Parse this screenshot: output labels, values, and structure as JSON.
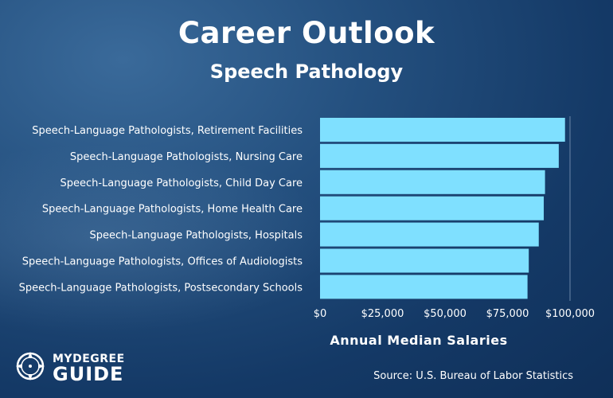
{
  "header": {
    "title": "Career Outlook",
    "subtitle": "Speech Pathology"
  },
  "chart_data": {
    "type": "bar",
    "orientation": "horizontal",
    "categories": [
      "Speech-Language Pathologists, Retirement Facilities",
      "Speech-Language Pathologists, Nursing Care",
      "Speech-Language Pathologists, Child Day Care",
      "Speech-Language Pathologists, Home Health Care",
      "Speech-Language Pathologists, Hospitals",
      "Speech-Language Pathologists, Offices of Audiologists",
      "Speech-Language Pathologists, Postsecondary Schools"
    ],
    "values": [
      98000,
      95500,
      90000,
      89500,
      87500,
      83500,
      83000
    ],
    "xlabel": "Annual Median Salaries",
    "ylabel": "",
    "xlim": [
      0,
      100000
    ],
    "x_ticks": [
      0,
      25000,
      50000,
      75000,
      100000
    ],
    "x_tick_labels": [
      "$0",
      "$25,000",
      "$50,000",
      "$75,000",
      "$100,000"
    ],
    "bar_color": "#7fe0ff",
    "grid": false,
    "legend": "none"
  },
  "footer": {
    "logo_top": "MYDEGREE",
    "logo_bottom": "GUIDE",
    "source": "Source: U.S. Bureau of Labor Statistics"
  }
}
